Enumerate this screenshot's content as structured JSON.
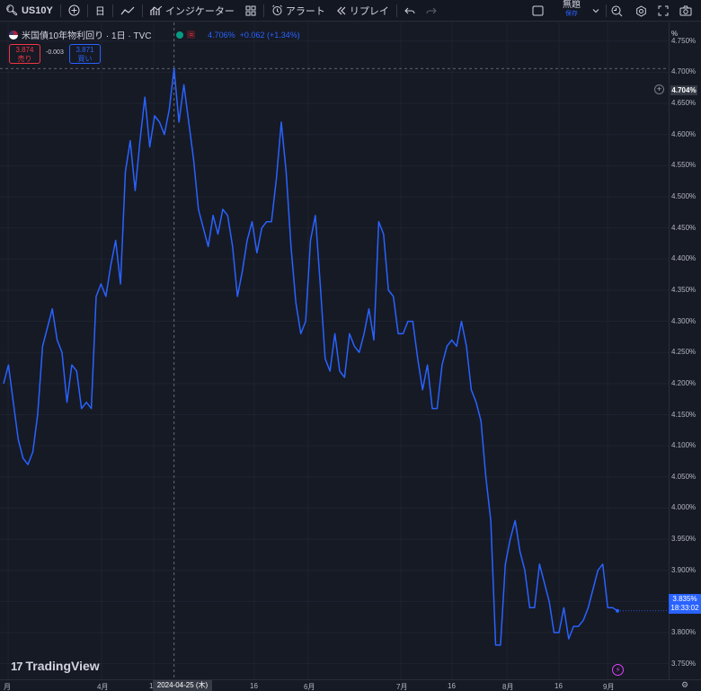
{
  "toolbar": {
    "symbol": "US10Y",
    "interval": "日",
    "indicators_label": "インジケーター",
    "alert_label": "アラート",
    "replay_label": "リプレイ",
    "layout_title": "無題",
    "layout_save": "保存"
  },
  "legend": {
    "title": "米国債10年物利回り · 1日 · TVC",
    "status_badge": "=",
    "value": "4.706%",
    "change": "+0.062 (+1.34%)"
  },
  "bidask": {
    "sell_price": "3.874",
    "sell_label": "売り",
    "spread": "-0.003",
    "buy_price": "3.871",
    "buy_label": "買い"
  },
  "price_scale": {
    "unit": "%",
    "labels": [
      "4.750%",
      "4.700%",
      "4.650%",
      "4.600%",
      "4.550%",
      "4.500%",
      "4.450%",
      "4.400%",
      "4.350%",
      "4.300%",
      "4.250%",
      "4.200%",
      "4.150%",
      "4.100%",
      "4.050%",
      "4.000%",
      "3.950%",
      "3.900%",
      "3.850%",
      "3.800%",
      "3.750%"
    ],
    "crosshair_price": "4.704%",
    "current_price": "3.835%",
    "countdown": "18:33:02"
  },
  "time_scale": {
    "labels": [
      "月",
      "4月",
      "16",
      "16",
      "6月",
      "7月",
      "16",
      "8月",
      "16",
      "9月"
    ],
    "crosshair_date": "2024-04-25 (木)"
  },
  "branding": {
    "logo_text": "TradingView"
  },
  "colors": {
    "background": "#161a25",
    "line": "#2962ff",
    "sell": "#f23645",
    "buy": "#2962ff",
    "status": "#089981"
  },
  "chart_data": {
    "type": "line",
    "series": [
      {
        "values": [
          4.2,
          4.23,
          4.17,
          4.11,
          4.08,
          4.07,
          4.09,
          4.15,
          4.26,
          4.29,
          4.32,
          4.27,
          4.25,
          4.17,
          4.23,
          4.22,
          4.16,
          4.17,
          4.16,
          4.34,
          4.36,
          4.34,
          4.39,
          4.43,
          4.36,
          4.54,
          4.59,
          4.51,
          4.59,
          4.66,
          4.58,
          4.63,
          4.62,
          4.6,
          4.64,
          4.706,
          4.62,
          4.68,
          4.62,
          4.56,
          4.48,
          4.45,
          4.42,
          4.47,
          4.44,
          4.48,
          4.47,
          4.42,
          4.34,
          4.38,
          4.43,
          4.46,
          4.41,
          4.45,
          4.46,
          4.46,
          4.53,
          4.62,
          4.54,
          4.42,
          4.33,
          4.28,
          4.3,
          4.43,
          4.47,
          4.36,
          4.24,
          4.22,
          4.28,
          4.22,
          4.21,
          4.28,
          4.26,
          4.25,
          4.28,
          4.32,
          4.27,
          4.46,
          4.44,
          4.35,
          4.34,
          4.28,
          4.28,
          4.3,
          4.3,
          4.24,
          4.19,
          4.23,
          4.16,
          4.16,
          4.23,
          4.26,
          4.27,
          4.26,
          4.3,
          4.26,
          4.19,
          4.17,
          4.14,
          4.05,
          3.98,
          3.78,
          3.78,
          3.91,
          3.95,
          3.98,
          3.93,
          3.9,
          3.84,
          3.84,
          3.91,
          3.88,
          3.85,
          3.8,
          3.8,
          3.84,
          3.79,
          3.81,
          3.81,
          3.82,
          3.84,
          3.87,
          3.9,
          3.91,
          3.84,
          3.84,
          3.835
        ]
      }
    ],
    "ylim": [
      3.725,
      4.78
    ],
    "grid": true
  }
}
